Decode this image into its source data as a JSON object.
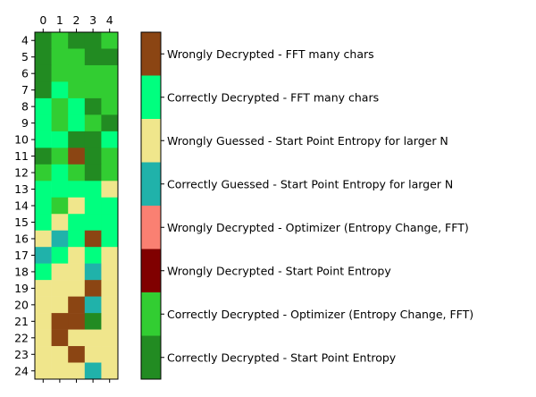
{
  "chart_data": {
    "type": "heatmap",
    "title": "",
    "xlabel": "",
    "ylabel": "",
    "x_ticks": [
      "0",
      "1",
      "2",
      "3",
      "4"
    ],
    "y_ticks": [
      "4",
      "5",
      "6",
      "7",
      "8",
      "9",
      "10",
      "11",
      "12",
      "13",
      "14",
      "15",
      "16",
      "17",
      "18",
      "19",
      "20",
      "21",
      "22",
      "23",
      "24"
    ],
    "x_axis_position": "top",
    "colorbar": {
      "position": "right",
      "categories": [
        {
          "value": 0,
          "label": "Correctly Decrypted - Start Point Entropy",
          "color": "#228B22"
        },
        {
          "value": 1,
          "label": "Correctly Decrypted - Optimizer (Entropy Change, FFT)",
          "color": "#32CD32"
        },
        {
          "value": 2,
          "label": "Wrongly Decrypted - Start Point Entropy",
          "color": "#800000"
        },
        {
          "value": 3,
          "label": "Wrongly Decrypted - Optimizer (Entropy Change, FFT)",
          "color": "#FA8072"
        },
        {
          "value": 4,
          "label": "Correctly Guessed - Start Point Entropy for larger N",
          "color": "#20B2AA"
        },
        {
          "value": 5,
          "label": "Wrongly Guessed - Start Point Entropy for larger N",
          "color": "#F0E68C"
        },
        {
          "value": 6,
          "label": "Correctly Decrypted - FFT many chars",
          "color": "#00FF7F"
        },
        {
          "value": 7,
          "label": "Wrongly Decrypted - FFT many chars",
          "color": "#8B4513"
        }
      ]
    },
    "values": [
      [
        0,
        1,
        0,
        0,
        1
      ],
      [
        0,
        1,
        1,
        0,
        0
      ],
      [
        0,
        1,
        1,
        1,
        1
      ],
      [
        0,
        6,
        1,
        1,
        1
      ],
      [
        6,
        1,
        6,
        0,
        1
      ],
      [
        6,
        1,
        6,
        1,
        0
      ],
      [
        6,
        6,
        0,
        0,
        6
      ],
      [
        0,
        1,
        7,
        0,
        1
      ],
      [
        1,
        6,
        1,
        0,
        1
      ],
      [
        6,
        6,
        6,
        6,
        5
      ],
      [
        6,
        1,
        5,
        6,
        6
      ],
      [
        6,
        5,
        6,
        6,
        6
      ],
      [
        5,
        4,
        6,
        7,
        6
      ],
      [
        4,
        6,
        5,
        6,
        5
      ],
      [
        6,
        5,
        5,
        4,
        5
      ],
      [
        5,
        5,
        5,
        7,
        5
      ],
      [
        5,
        5,
        7,
        4,
        5
      ],
      [
        5,
        7,
        7,
        0,
        5
      ],
      [
        5,
        7,
        5,
        5,
        5
      ],
      [
        5,
        5,
        7,
        5,
        5
      ],
      [
        5,
        5,
        5,
        4,
        5
      ]
    ]
  }
}
